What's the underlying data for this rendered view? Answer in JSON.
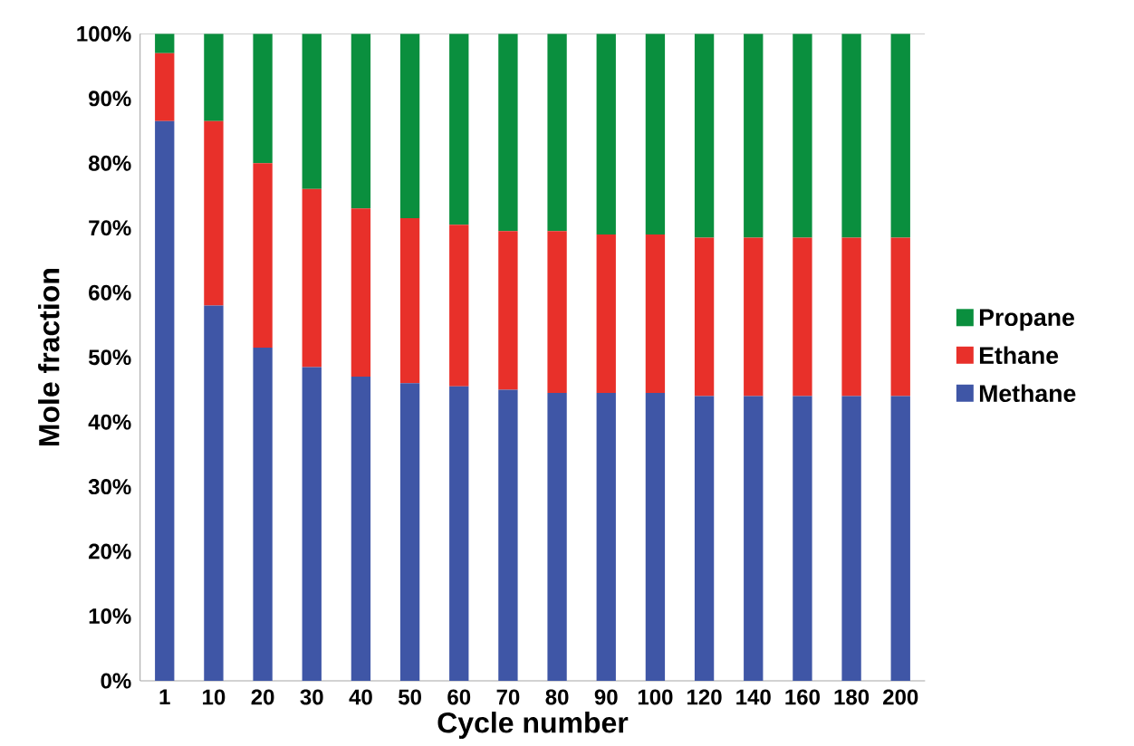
{
  "chart_data": {
    "type": "bar",
    "stacked": true,
    "xlabel": "Cycle number",
    "ylabel": "Mole fraction",
    "categories": [
      "1",
      "10",
      "20",
      "30",
      "40",
      "50",
      "60",
      "70",
      "80",
      "90",
      "100",
      "120",
      "140",
      "160",
      "180",
      "200"
    ],
    "series": [
      {
        "name": "Methane",
        "color": "#3f56a6",
        "values": [
          86.5,
          58,
          51.5,
          48.5,
          47,
          46,
          45.5,
          45,
          44.5,
          44.5,
          44.5,
          44,
          44,
          44,
          44,
          44
        ]
      },
      {
        "name": "Ethane",
        "color": "#e8302a",
        "values": [
          10.5,
          28.5,
          28.5,
          27.5,
          26,
          25.5,
          25,
          24.5,
          25,
          24.5,
          24.5,
          24.5,
          24.5,
          24.5,
          24.5,
          24.5
        ]
      },
      {
        "name": "Propane",
        "color": "#0a8f3e",
        "values": [
          3,
          13.5,
          20,
          24,
          27,
          28.5,
          29.5,
          30.5,
          30.5,
          31,
          31,
          31.5,
          31.5,
          31.5,
          31.5,
          31.5
        ]
      }
    ],
    "ylim": [
      0,
      100
    ],
    "yticks": [
      {
        "value": 0,
        "label": "0%"
      },
      {
        "value": 10,
        "label": "10%"
      },
      {
        "value": 20,
        "label": "20%"
      },
      {
        "value": 30,
        "label": "30%"
      },
      {
        "value": 40,
        "label": "40%"
      },
      {
        "value": 50,
        "label": "50%"
      },
      {
        "value": 60,
        "label": "60%"
      },
      {
        "value": 70,
        "label": "70%"
      },
      {
        "value": 80,
        "label": "80%"
      },
      {
        "value": 90,
        "label": "90%"
      },
      {
        "value": 100,
        "label": "100%"
      }
    ],
    "legend": "right"
  }
}
